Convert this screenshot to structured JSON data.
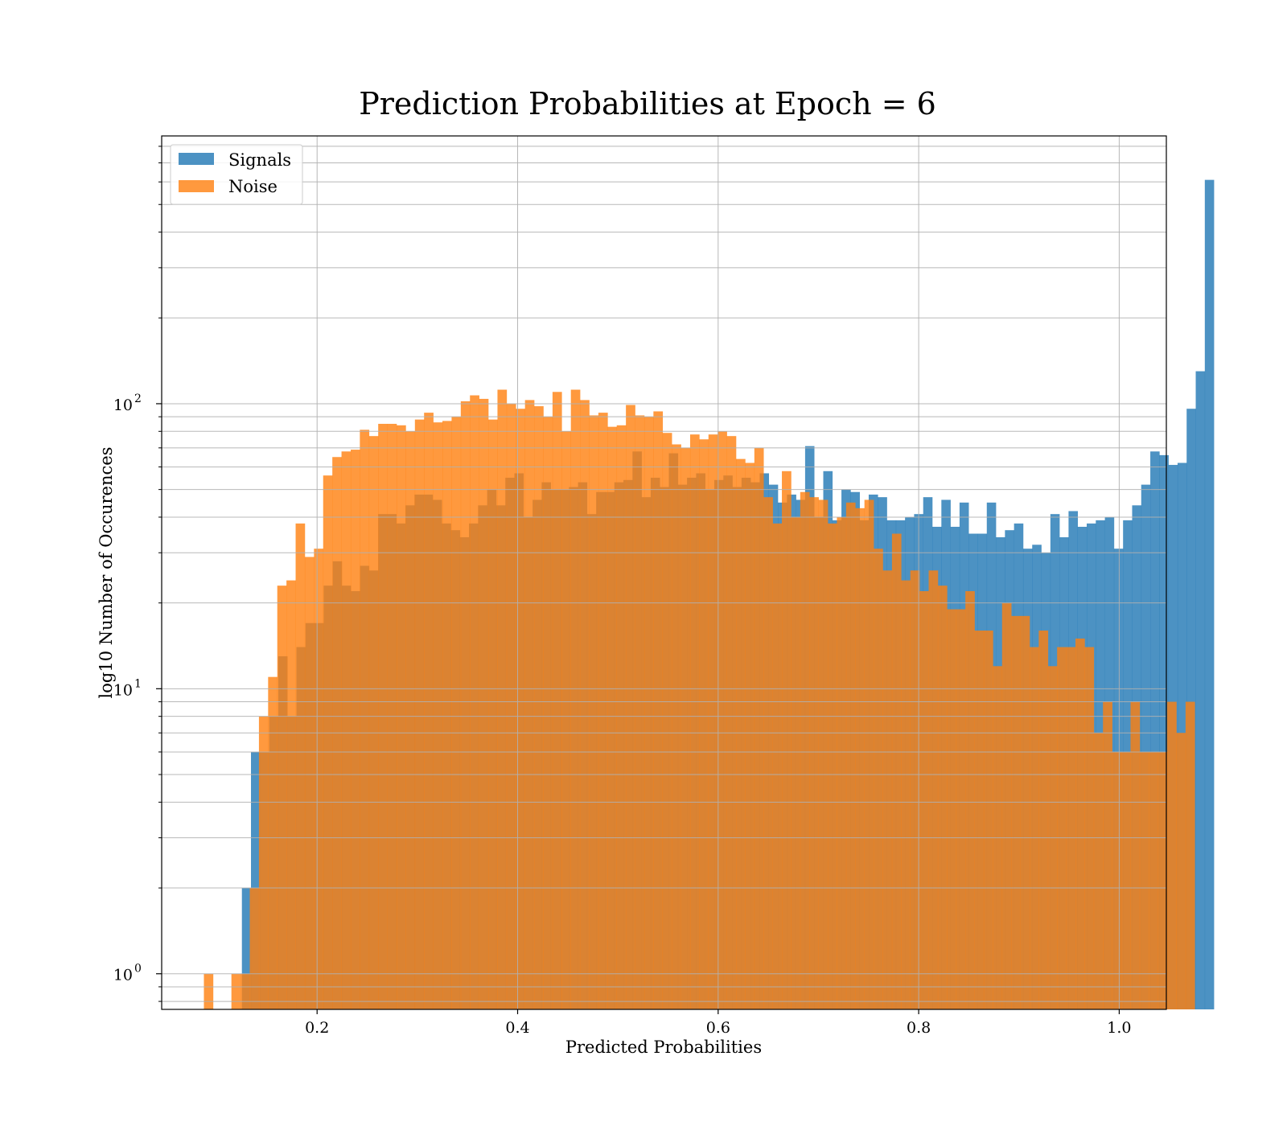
{
  "chart_data": {
    "type": "histogram",
    "title": "Prediction Probabilities at Epoch = 6",
    "xlabel": "Predicted Probabilities",
    "ylabel": "log10 Number of Occurences",
    "y_scale": "log",
    "xlim": [
      0.045,
      1.047
    ],
    "ylim": [
      0.75,
      870
    ],
    "x_ticks": [
      {
        "value": 0.2,
        "label": "0.2"
      },
      {
        "value": 0.4,
        "label": "0.4"
      },
      {
        "value": 0.6,
        "label": "0.6"
      },
      {
        "value": 0.8,
        "label": "0.8"
      },
      {
        "value": 1.0,
        "label": "1.0"
      }
    ],
    "y_ticks": [
      {
        "value": 1,
        "base": "10",
        "exp": "0"
      },
      {
        "value": 10,
        "base": "10",
        "exp": "1"
      },
      {
        "value": 100,
        "base": "10",
        "exp": "2"
      }
    ],
    "grid": true,
    "legend_position": "top-left",
    "series": [
      {
        "name": "Signals",
        "color": "#1f77b4",
        "opacity": 0.8,
        "bin_start": 0.125,
        "bin_width": 0.00906,
        "counts": [
          2,
          6,
          6,
          8,
          13,
          8,
          14,
          17,
          17,
          23,
          28,
          23,
          22,
          27,
          26,
          41,
          41,
          38,
          44,
          48,
          48,
          46,
          38,
          36,
          34,
          38,
          44,
          50,
          44,
          55,
          57,
          40,
          46,
          53,
          50,
          50,
          51,
          53,
          41,
          49,
          49,
          53,
          54,
          68,
          47,
          55,
          51,
          67,
          52,
          55,
          57,
          50,
          54,
          56,
          51,
          55,
          53,
          57,
          52,
          45,
          48,
          46,
          71,
          40,
          58,
          39,
          50,
          49,
          39,
          48,
          47,
          39,
          39,
          40,
          41,
          47,
          37,
          46,
          37,
          45,
          35,
          35,
          45,
          34,
          36,
          38,
          31,
          32,
          30,
          41,
          34,
          42,
          37,
          38,
          39,
          40,
          31,
          39,
          44,
          52,
          68,
          66,
          61,
          62,
          96,
          130,
          610
        ]
      },
      {
        "name": "Noise",
        "color": "#ff7f0e",
        "opacity": 0.8,
        "bin_start": 0.0871,
        "bin_width": 0.00915,
        "counts": [
          1,
          0,
          0,
          1,
          1,
          2,
          8,
          11,
          23,
          24,
          38,
          29,
          31,
          56,
          65,
          68,
          69,
          81,
          77,
          85,
          85,
          84,
          80,
          88,
          93,
          86,
          87,
          90,
          102,
          107,
          104,
          88,
          112,
          100,
          96,
          103,
          98,
          90,
          110,
          80,
          112,
          103,
          91,
          93,
          83,
          84,
          99,
          91,
          90,
          94,
          79,
          72,
          70,
          78,
          75,
          78,
          80,
          77,
          64,
          62,
          70,
          47,
          38,
          58,
          40,
          49,
          47,
          46,
          38,
          40,
          45,
          43,
          46,
          31,
          26,
          35,
          24,
          26,
          22,
          26,
          23,
          19,
          19,
          22,
          16,
          16,
          12,
          20,
          18,
          18,
          14,
          16,
          12,
          14,
          14,
          15,
          14,
          7,
          9,
          6,
          6,
          9,
          6,
          6,
          6,
          9,
          7,
          9
        ]
      }
    ]
  }
}
